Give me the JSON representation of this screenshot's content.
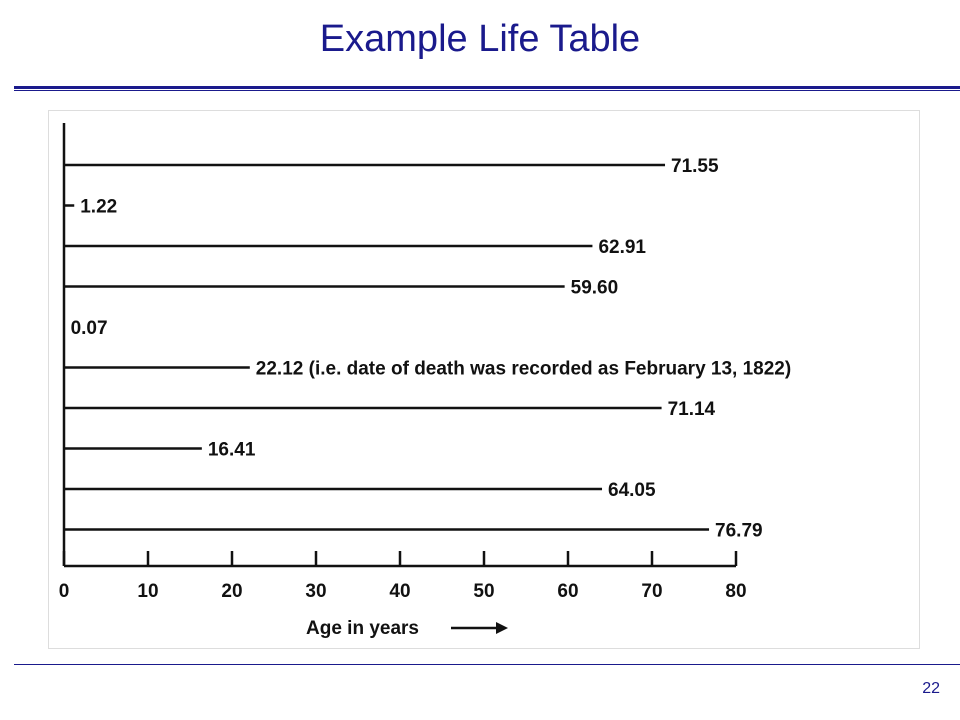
{
  "slide": {
    "title": "Example Life Table",
    "page_number": "22",
    "accent_color": "#1a1a8c"
  },
  "chart_data": {
    "type": "bar",
    "orientation": "horizontal",
    "title": "",
    "xlabel": "Age in years",
    "ylabel": "",
    "xlim": [
      0,
      80
    ],
    "xticks": [
      0,
      10,
      20,
      30,
      40,
      50,
      60,
      70,
      80
    ],
    "grid": false,
    "values": [
      71.55,
      1.22,
      62.91,
      59.6,
      0.07,
      22.12,
      71.14,
      16.41,
      64.05,
      76.79
    ],
    "labels": [
      "71.55",
      "1.22",
      "62.91",
      "59.60",
      "0.07",
      "22.12 (i.e. date of death was recorded as February 13, 1822)",
      "71.14",
      "16.41",
      "64.05",
      "76.79"
    ]
  }
}
